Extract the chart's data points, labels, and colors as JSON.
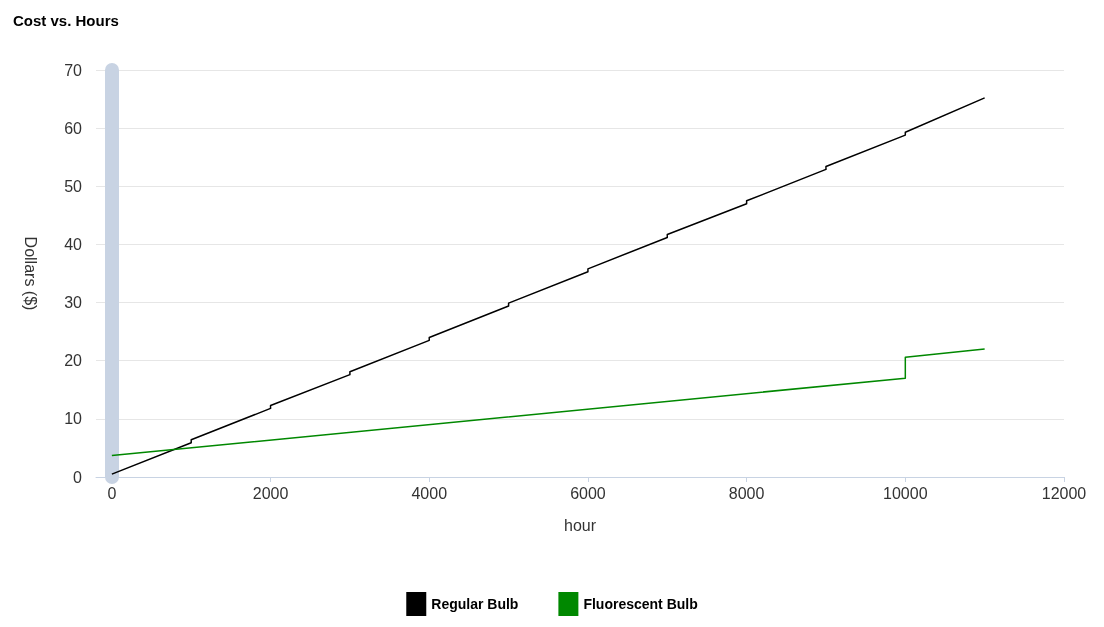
{
  "chart_data": {
    "type": "line",
    "title": "Cost vs. Hours",
    "xlabel": "hour",
    "ylabel": "Dollars ($)",
    "xlim": [
      -200,
      12000
    ],
    "xticks": [
      0,
      2000,
      4000,
      6000,
      8000,
      10000,
      12000
    ],
    "ylim": [
      0,
      70
    ],
    "yticks": [
      0,
      10,
      20,
      30,
      40,
      50,
      60,
      70
    ],
    "grid": "y",
    "legend": "bottom",
    "marker": "none",
    "line_style": "solid",
    "series": [
      {
        "name": "Regular Bulb",
        "color": "#000000",
        "x": [
          0,
          1000,
          1000,
          2000,
          2000,
          3000,
          3000,
          4000,
          4000,
          5000,
          5000,
          6000,
          6000,
          7000,
          7000,
          8000,
          8000,
          9000,
          9000,
          10000,
          10000,
          11000
        ],
        "values": [
          0.5,
          5.9,
          6.4,
          11.8,
          12.3,
          17.6,
          18.1,
          23.5,
          24.0,
          29.4,
          29.9,
          35.3,
          35.8,
          41.2,
          41.7,
          47.0,
          47.5,
          52.9,
          53.4,
          58.8,
          59.3,
          65.2
        ]
      },
      {
        "name": "Fluorescent Bulb",
        "color": "#008800",
        "x": [
          0,
          10000,
          10000,
          11000
        ],
        "values": [
          3.7,
          17.0,
          20.6,
          22.0
        ]
      }
    ]
  }
}
